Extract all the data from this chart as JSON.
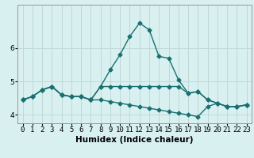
{
  "xlabel": "Humidex (Indice chaleur)",
  "bg_color": "#d8f0f0",
  "grid_color": "#c0d8d8",
  "line_color": "#1a7070",
  "x_ticks": [
    0,
    1,
    2,
    3,
    4,
    5,
    6,
    7,
    8,
    9,
    10,
    11,
    12,
    13,
    14,
    15,
    16,
    17,
    18,
    19,
    20,
    21,
    22,
    23
  ],
  "ylim": [
    3.75,
    7.3
  ],
  "xlim": [
    -0.5,
    23.5
  ],
  "line1_y": [
    4.45,
    4.55,
    4.75,
    4.85,
    4.6,
    4.55,
    4.55,
    4.45,
    4.85,
    5.35,
    5.8,
    6.35,
    6.75,
    6.55,
    5.75,
    5.7,
    5.05,
    4.65,
    4.7,
    4.45,
    4.35,
    4.25,
    4.25,
    4.3
  ],
  "line2_y": [
    4.45,
    4.55,
    4.75,
    4.85,
    4.6,
    4.55,
    4.55,
    4.45,
    4.85,
    4.85,
    4.85,
    4.85,
    4.85,
    4.85,
    4.85,
    4.85,
    4.85,
    4.65,
    4.7,
    4.45,
    4.35,
    4.25,
    4.25,
    4.3
  ],
  "line3_y": [
    4.45,
    4.55,
    4.75,
    4.85,
    4.6,
    4.55,
    4.55,
    4.45,
    4.45,
    4.4,
    4.35,
    4.3,
    4.25,
    4.2,
    4.15,
    4.1,
    4.05,
    4.0,
    3.95,
    4.25,
    4.35,
    4.25,
    4.25,
    4.3
  ],
  "marker_size": 2.5,
  "line_width": 1.0,
  "tick_fontsize": 6.5,
  "label_fontsize": 7.5
}
